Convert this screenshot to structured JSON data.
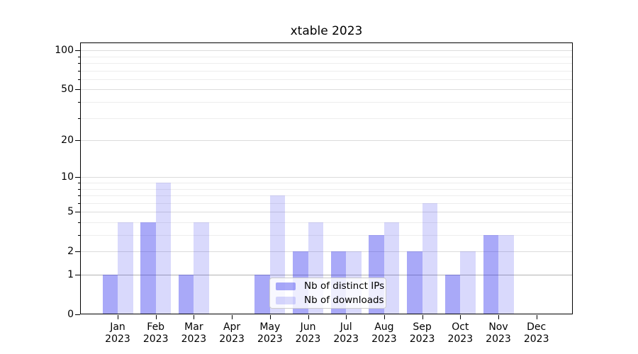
{
  "title": "xtable 2023",
  "colors": {
    "bar_ips": "rgba(47,47,239,0.41)",
    "bar_downloads": "rgba(47,47,239,0.18)",
    "gridline_major": "#dcdcdc",
    "gridline_minor": "#ededed",
    "gridline_baseline": "#b2b2b2",
    "axis": "#000000",
    "background": "#ffffff"
  },
  "chart_data": {
    "type": "bar",
    "title": "xtable 2023",
    "categories": [
      "Jan",
      "Feb",
      "Mar",
      "Apr",
      "May",
      "Jun",
      "Jul",
      "Aug",
      "Sep",
      "Oct",
      "Nov",
      "Dec"
    ],
    "year": "2023",
    "x_tick_label_format": "Month newline Year",
    "series": [
      {
        "name": "Nb of distinct IPs",
        "color_key": "bar_ips",
        "values": [
          1,
          4,
          1,
          0,
          1,
          2,
          2,
          3,
          2,
          1,
          3,
          0
        ]
      },
      {
        "name": "Nb of downloads",
        "color_key": "bar_downloads",
        "values": [
          4,
          9,
          4,
          0,
          7,
          4,
          2,
          4,
          6,
          2,
          3,
          0
        ]
      }
    ],
    "xlabel": "",
    "ylabel": "",
    "y_scale": "log1p",
    "ylim": [
      0,
      115
    ],
    "y_ticks": [
      0,
      1,
      2,
      5,
      10,
      20,
      50,
      100
    ],
    "y_minor_gridlines": [
      3,
      4,
      6,
      7,
      8,
      9,
      30,
      40,
      60,
      70,
      80,
      90
    ],
    "grid": "horizontal only",
    "legend_position": "inside bottom-center"
  }
}
